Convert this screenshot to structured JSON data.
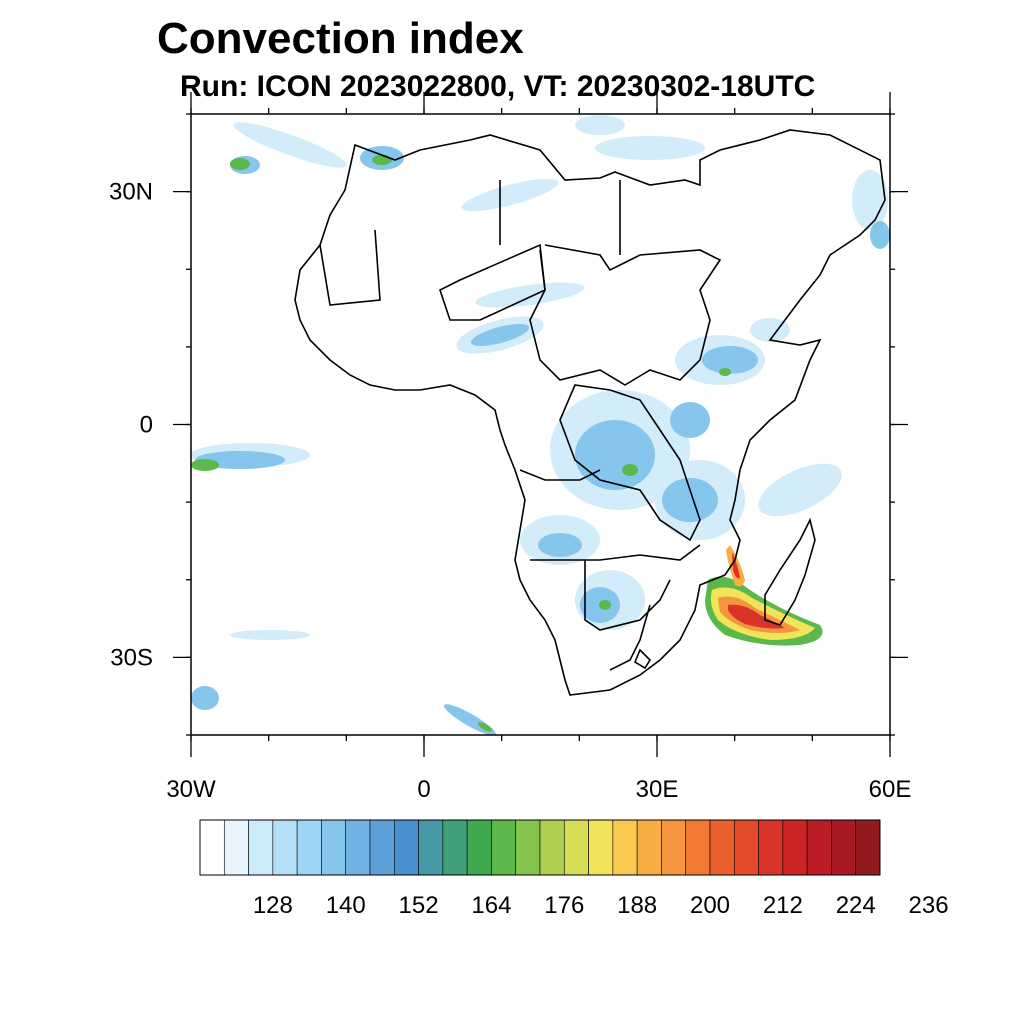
{
  "title": "Convection index",
  "subtitle": "Run: ICON 2023022800,  VT: 20230302-18UTC",
  "map": {
    "lon_range": [
      -30,
      60
    ],
    "lat_range": [
      -40,
      40
    ],
    "lat_ticks": [
      {
        "value": 30,
        "label": "30N"
      },
      {
        "value": 0,
        "label": "0"
      },
      {
        "value": -30,
        "label": "30S"
      }
    ],
    "lon_ticks": [
      {
        "value": -30,
        "label": "30W"
      },
      {
        "value": 0,
        "label": "0"
      },
      {
        "value": 30,
        "label": "30E"
      },
      {
        "value": 60,
        "label": "60E"
      }
    ],
    "land_color": "#ffffff",
    "coast_color": "#000000"
  },
  "colorbar": {
    "colors": [
      "#ffffff",
      "#e8f5fc",
      "#cdeaf9",
      "#b3e0f7",
      "#9dd6f5",
      "#86c6ed",
      "#71b2e4",
      "#5c9fd9",
      "#4a90cd",
      "#4699a6",
      "#3f9f7a",
      "#3ea94f",
      "#5cb84a",
      "#86c34d",
      "#aecf4f",
      "#d5de55",
      "#f1e45a",
      "#f8c84f",
      "#f8ae46",
      "#f5953d",
      "#f07a33",
      "#eb612d",
      "#e24a2a",
      "#da3329",
      "#cc2427",
      "#bc1c25",
      "#a91922",
      "#931a1e"
    ],
    "labels": [
      "128",
      "140",
      "152",
      "164",
      "176",
      "188",
      "200",
      "212",
      "224",
      "236"
    ]
  },
  "features": {
    "high_convection_area": "Mozambique Channel / Madagascar",
    "color_scale_low": "#5c9fd9",
    "color_scale_high": "#da3329"
  }
}
